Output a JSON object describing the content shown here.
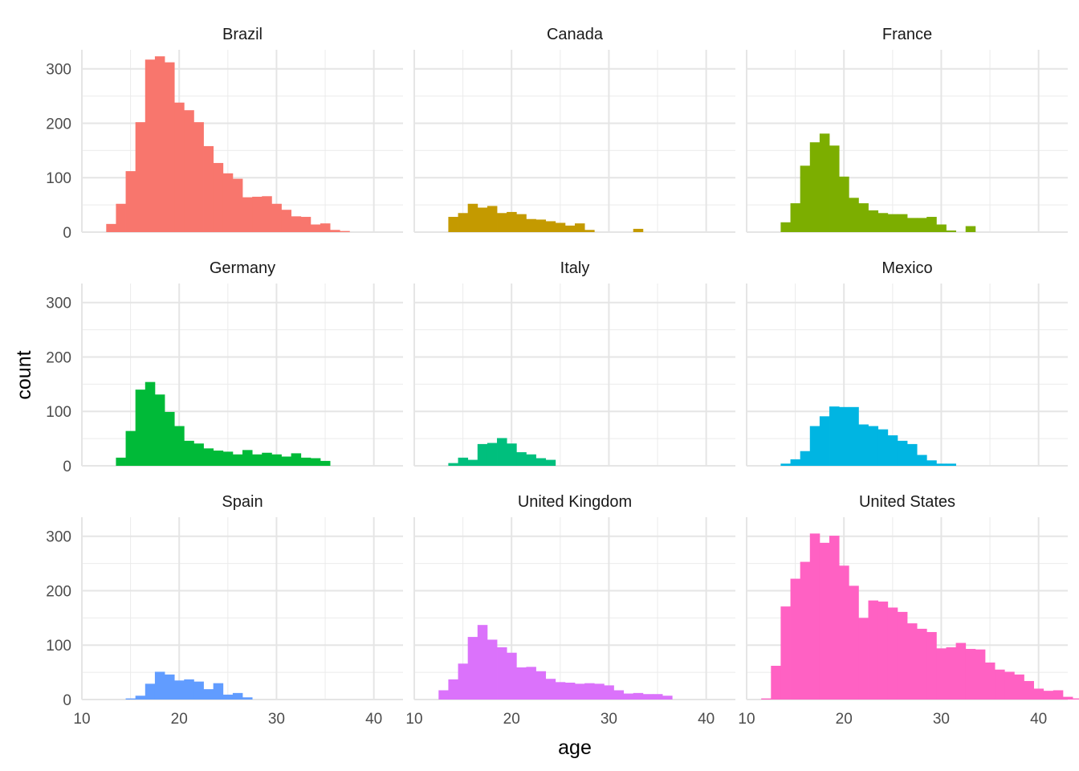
{
  "chart_data": {
    "type": "bar",
    "subtype": "faceted histogram",
    "xlabel": "age",
    "ylabel": "count",
    "xlim": [
      10,
      43
    ],
    "ylim": [
      0,
      335
    ],
    "x_ticks": [
      10,
      20,
      30,
      40
    ],
    "y_ticks": [
      0,
      100,
      200,
      300
    ],
    "grid": true,
    "legend": "none",
    "bin_width": 1,
    "facets": [
      {
        "label": "Brazil",
        "color": "#F8766D",
        "start": 13,
        "counts": [
          15,
          52,
          112,
          202,
          317,
          323,
          312,
          238,
          224,
          202,
          158,
          127,
          108,
          98,
          64,
          65,
          66,
          52,
          41,
          29,
          28,
          14,
          16,
          4,
          2
        ]
      },
      {
        "label": "Canada",
        "color": "#C49A00",
        "start": 14,
        "counts": [
          28,
          35,
          52,
          45,
          48,
          35,
          37,
          33,
          24,
          23,
          20,
          17,
          12,
          16,
          4,
          0,
          0,
          0,
          0,
          6
        ]
      },
      {
        "label": "France",
        "color": "#7CAE00",
        "start": 14,
        "counts": [
          18,
          53,
          122,
          165,
          181,
          159,
          102,
          63,
          53,
          40,
          35,
          33,
          33,
          26,
          26,
          28,
          14,
          3,
          0,
          11
        ]
      },
      {
        "label": "Germany",
        "color": "#00BA38",
        "start": 14,
        "counts": [
          15,
          64,
          140,
          154,
          131,
          99,
          73,
          46,
          41,
          32,
          28,
          26,
          21,
          29,
          21,
          24,
          21,
          17,
          23,
          15,
          14,
          9
        ]
      },
      {
        "label": "Italy",
        "color": "#00BF7D",
        "start": 14,
        "counts": [
          5,
          15,
          11,
          40,
          42,
          51,
          41,
          25,
          21,
          14,
          11
        ]
      },
      {
        "label": "Mexico",
        "color": "#00B5E2",
        "start": 14,
        "counts": [
          4,
          12,
          27,
          73,
          91,
          109,
          108,
          108,
          76,
          73,
          67,
          56,
          46,
          40,
          20,
          10,
          4,
          4
        ]
      },
      {
        "label": "Spain",
        "color": "#619CFF",
        "start": 15,
        "counts": [
          2,
          7,
          29,
          51,
          46,
          35,
          37,
          33,
          19,
          30,
          9,
          12,
          4
        ]
      },
      {
        "label": "United Kingdom",
        "color": "#DB72FB",
        "start": 13,
        "counts": [
          17,
          37,
          66,
          115,
          137,
          110,
          96,
          86,
          59,
          60,
          52,
          38,
          32,
          31,
          29,
          30,
          29,
          26,
          17,
          11,
          12,
          10,
          10,
          7
        ]
      },
      {
        "label": "United States",
        "color": "#FF61C3",
        "start": 12,
        "counts": [
          2,
          62,
          171,
          222,
          253,
          305,
          288,
          301,
          246,
          209,
          150,
          182,
          180,
          169,
          161,
          140,
          130,
          124,
          94,
          96,
          104,
          93,
          92,
          68,
          55,
          51,
          46,
          34,
          20,
          16,
          17,
          5,
          2
        ]
      }
    ]
  }
}
